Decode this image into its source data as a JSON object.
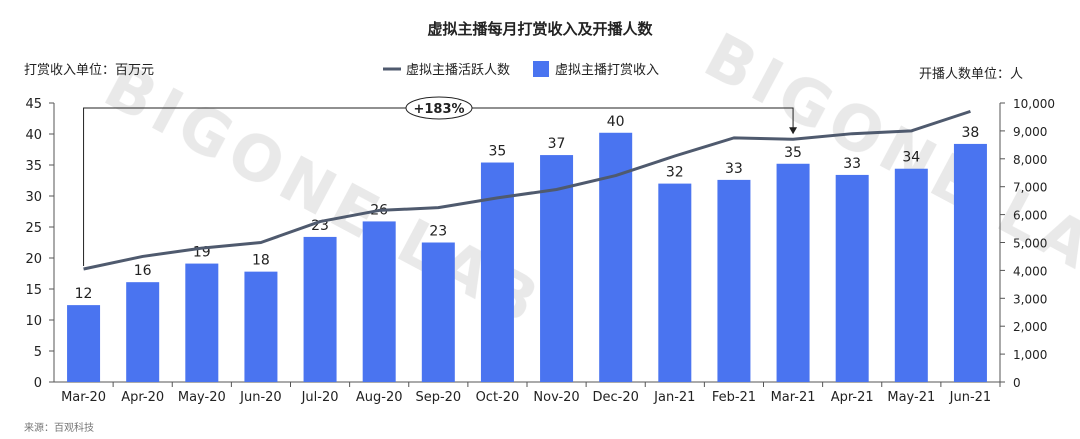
{
  "chart_data": {
    "type": "bar",
    "title": "虚拟主播每月打赏收入及开播人数",
    "left_axis_title": "打赏收入单位：百万元",
    "right_axis_title": "开播人数单位：人",
    "categories": [
      "Mar-20",
      "Apr-20",
      "May-20",
      "Jun-20",
      "Jul-20",
      "Aug-20",
      "Sep-20",
      "Oct-20",
      "Nov-20",
      "Dec-20",
      "Jan-21",
      "Feb-21",
      "Mar-21",
      "Apr-21",
      "May-21",
      "Jun-21"
    ],
    "series": [
      {
        "name": "虚拟主播打赏收入",
        "type": "bar",
        "axis": "left",
        "color": "#4a74f0",
        "values": [
          12.4,
          16.1,
          19.1,
          17.8,
          23.4,
          25.9,
          22.5,
          35.4,
          36.6,
          40.2,
          32.0,
          32.6,
          35.2,
          33.4,
          34.4,
          38.4
        ],
        "labels": [
          "12",
          "16",
          "19",
          "18",
          "23",
          "26",
          "23",
          "35",
          "37",
          "40",
          "32",
          "33",
          "35",
          "33",
          "34",
          "38"
        ]
      },
      {
        "name": "虚拟主播活跃人数",
        "type": "line",
        "axis": "right",
        "color": "#4f5a6e",
        "values": [
          4050,
          4500,
          4800,
          5000,
          5750,
          6150,
          6250,
          6600,
          6900,
          7400,
          8100,
          8750,
          8700,
          8900,
          9000,
          9700
        ]
      }
    ],
    "left_axis": {
      "ylim": [
        0,
        45
      ],
      "ticks": [
        "0",
        "5",
        "10",
        "15",
        "20",
        "25",
        "30",
        "35",
        "40",
        "45"
      ]
    },
    "right_axis": {
      "ylim": [
        0,
        10000
      ],
      "ticks": [
        "0",
        "1,000",
        "2,000",
        "3,000",
        "4,000",
        "5,000",
        "6,000",
        "7,000",
        "8,000",
        "9,000",
        "10,000"
      ]
    },
    "annotation": {
      "text": "+183%",
      "from": "Mar-20",
      "to": "Mar-21"
    },
    "legend_position": "top-center",
    "grid": false,
    "watermark": "BIGONE LAB",
    "source": "来源：百观科技"
  }
}
